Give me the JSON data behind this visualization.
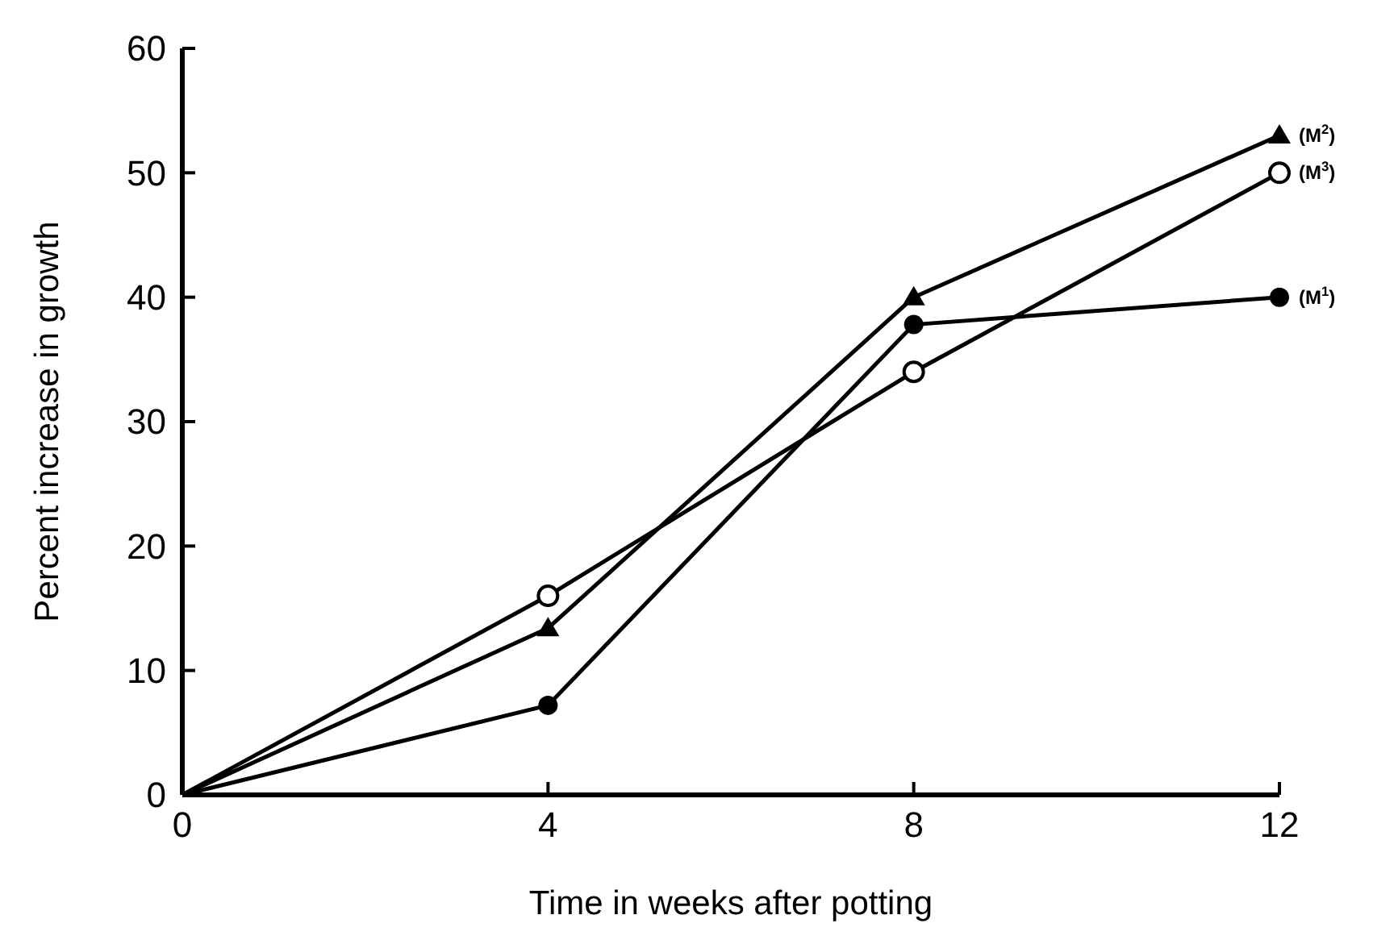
{
  "chart_data": {
    "type": "line",
    "xlabel": "Time in weeks after potting",
    "ylabel": "Percent increase in growth",
    "x": [
      0,
      4,
      8,
      12
    ],
    "xlim": [
      0,
      12
    ],
    "xticks": [
      0,
      4,
      8,
      12
    ],
    "ylim": [
      0,
      60
    ],
    "yticks": [
      0,
      10,
      20,
      30,
      40,
      50,
      60
    ],
    "series": [
      {
        "name": "(M$^{2}$)",
        "color": "#000000",
        "marker": "triangle",
        "values": [
          0,
          13.4,
          40,
          53
        ]
      },
      {
        "name": "(M$^{3}$)",
        "color": "#000000",
        "marker": "circle-open",
        "values": [
          0,
          16,
          34,
          50
        ]
      },
      {
        "name": "(M$^{1}$)",
        "color": "#000000",
        "marker": "circle",
        "values": [
          0,
          7.2,
          37.8,
          40
        ]
      }
    ]
  }
}
